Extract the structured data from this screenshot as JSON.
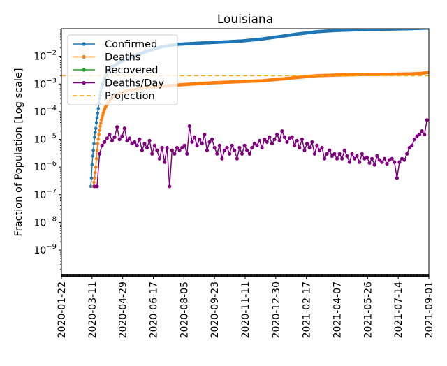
{
  "chart_data": {
    "type": "line",
    "title": "Louisiana",
    "xlabel": "",
    "ylabel": "Fraction of Population [Log scale]",
    "yscale": "log",
    "ylim": [
      1.1e-10,
      0.1
    ],
    "xlim_dates": [
      "2020-01-22",
      "2021-09-01"
    ],
    "x_tick_labels": [
      "2020-01-22",
      "2020-03-11",
      "2020-04-29",
      "2020-06-17",
      "2020-08-05",
      "2020-09-23",
      "2020-11-11",
      "2020-12-30",
      "2021-02-17",
      "2021-04-07",
      "2021-05-26",
      "2021-07-14",
      "2021-09-01"
    ],
    "x_tick_days": [
      0,
      49,
      98,
      147,
      196,
      245,
      294,
      343,
      392,
      441,
      490,
      539,
      588
    ],
    "y_ticks": [
      {
        "base": "10",
        "exp": "−2",
        "value": 0.01
      },
      {
        "base": "10",
        "exp": "−3",
        "value": 0.001
      },
      {
        "base": "10",
        "exp": "−4",
        "value": 0.0001
      },
      {
        "base": "10",
        "exp": "−5",
        "value": 1e-05
      },
      {
        "base": "10",
        "exp": "−6",
        "value": 1e-06
      },
      {
        "base": "10",
        "exp": "−7",
        "value": 1e-07
      },
      {
        "base": "10",
        "exp": "−8",
        "value": 1e-08
      },
      {
        "base": "10",
        "exp": "−9",
        "value": 1e-09
      }
    ],
    "x_unit": "days since 2020-01-22",
    "legend_position": "upper-left",
    "series": [
      {
        "name": "Confirmed",
        "color": "#1f77b4",
        "style": "line-marker",
        "points": [
          [
            47,
            2e-07
          ],
          [
            48,
            4e-07
          ],
          [
            49,
            1.2e-06
          ],
          [
            50,
            2.5e-06
          ],
          [
            51,
            4e-06
          ],
          [
            52,
            7e-06
          ],
          [
            53,
            1.2e-05
          ],
          [
            54,
            1.8e-05
          ],
          [
            55,
            2.5e-05
          ],
          [
            56,
            4e-05
          ],
          [
            57,
            6e-05
          ],
          [
            58,
            9e-05
          ],
          [
            59,
            0.00013
          ],
          [
            61,
            0.0003
          ],
          [
            64,
            0.0007
          ],
          [
            70,
            0.002
          ],
          [
            80,
            0.004
          ],
          [
            95,
            0.0065
          ],
          [
            120,
            0.011
          ],
          [
            140,
            0.016
          ],
          [
            160,
            0.022
          ],
          [
            185,
            0.027
          ],
          [
            220,
            0.03
          ],
          [
            260,
            0.033
          ],
          [
            290,
            0.036
          ],
          [
            320,
            0.042
          ],
          [
            350,
            0.052
          ],
          [
            380,
            0.065
          ],
          [
            410,
            0.078
          ],
          [
            440,
            0.086
          ],
          [
            480,
            0.092
          ],
          [
            520,
            0.096
          ],
          [
            560,
            0.1
          ],
          [
            588,
            0.105
          ]
        ]
      },
      {
        "name": "Deaths",
        "color": "#ff7f0e",
        "style": "line-marker",
        "points": [
          [
            51,
            2e-07
          ],
          [
            53,
            4e-07
          ],
          [
            55,
            1e-06
          ],
          [
            56,
            2e-06
          ],
          [
            57,
            4e-06
          ],
          [
            58,
            7e-06
          ],
          [
            60,
            1.5e-05
          ],
          [
            62,
            3e-05
          ],
          [
            64,
            5e-05
          ],
          [
            67,
            9e-05
          ],
          [
            70,
            0.00014
          ],
          [
            75,
            0.00022
          ],
          [
            80,
            0.0003
          ],
          [
            90,
            0.00042
          ],
          [
            103,
            0.00055
          ],
          [
            125,
            0.00068
          ],
          [
            150,
            0.00078
          ],
          [
            180,
            0.0009
          ],
          [
            210,
            0.001
          ],
          [
            240,
            0.0011
          ],
          [
            280,
            0.0012
          ],
          [
            320,
            0.0013
          ],
          [
            350,
            0.0015
          ],
          [
            380,
            0.00175
          ],
          [
            410,
            0.002
          ],
          [
            440,
            0.0021
          ],
          [
            480,
            0.0022
          ],
          [
            520,
            0.00225
          ],
          [
            555,
            0.0023
          ],
          [
            575,
            0.0024
          ],
          [
            588,
            0.00265
          ]
        ]
      },
      {
        "name": "Recovered",
        "color": "#2ca02c",
        "style": "line-marker",
        "points": []
      },
      {
        "name": "Deaths/Day",
        "color": "#800080",
        "style": "line-marker",
        "start_day": 53,
        "step_days": 4,
        "values": [
          2e-07,
          2e-07,
          3e-06,
          6e-06,
          8e-06,
          1.1e-05,
          1.5e-05,
          9e-06,
          1.2e-05,
          2.8e-05,
          1e-05,
          1.3e-05,
          2.5e-05,
          9e-06,
          1.1e-05,
          7e-06,
          8e-06,
          6e-06,
          1e-05,
          4e-06,
          7e-06,
          5e-06,
          9e-06,
          3e-06,
          6e-06,
          4e-06,
          2e-06,
          5e-06,
          1.5e-06,
          5e-06,
          2e-07,
          4e-06,
          3e-06,
          5e-06,
          4e-06,
          5e-06,
          6e-06,
          3e-06,
          3e-05,
          8e-06,
          1.2e-05,
          6e-06,
          1e-05,
          7e-06,
          1.5e-05,
          4e-06,
          8e-06,
          1e-05,
          5e-06,
          3e-06,
          6e-06,
          2e-06,
          4e-06,
          5e-06,
          3e-06,
          6e-06,
          4e-06,
          2e-06,
          5e-06,
          3e-06,
          6e-06,
          4e-06,
          3e-06,
          5e-06,
          7e-06,
          6e-06,
          9e-06,
          5e-06,
          1e-05,
          8e-06,
          1.2e-05,
          7e-06,
          1e-05,
          1.5e-05,
          9e-06,
          2e-05,
          1.2e-05,
          8e-06,
          1.1e-05,
          1.2e-05,
          6e-06,
          9e-06,
          5e-06,
          1e-05,
          4e-06,
          7e-06,
          5e-06,
          8e-06,
          3e-06,
          6e-06,
          4e-06,
          5e-06,
          2e-06,
          3e-06,
          4e-06,
          2.5e-06,
          3e-06,
          2e-06,
          3e-06,
          2e-06,
          4e-06,
          2.5e-06,
          1.5e-06,
          3e-06,
          2e-06,
          2.5e-06,
          1.5e-06,
          3e-06,
          2e-06,
          2.2e-06,
          1.4e-06,
          2e-06,
          1.2e-06,
          2.5e-06,
          1.8e-06,
          1.5e-06,
          2e-06,
          1.3e-06,
          1.8e-06,
          2e-06,
          1.5e-06,
          4e-07,
          1.5e-06,
          2e-06,
          1.8e-06,
          3e-06,
          5e-06,
          6e-06,
          1e-05,
          1.3e-05,
          1.5e-05,
          2e-05,
          1.5e-05,
          5e-05
        ]
      },
      {
        "name": "Projection",
        "color": "#ffa500",
        "style": "dashed",
        "value": 0.002
      }
    ]
  }
}
